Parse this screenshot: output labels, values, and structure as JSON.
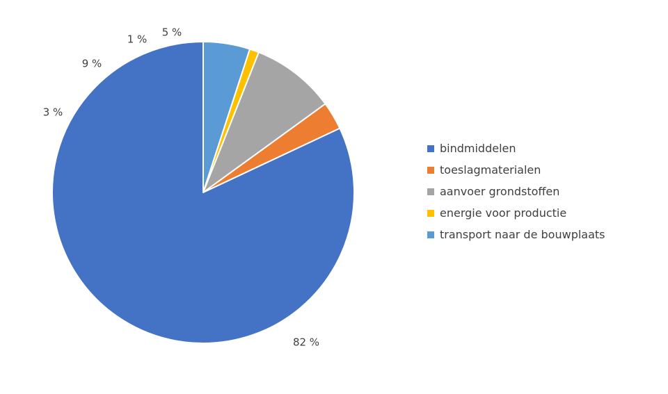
{
  "chart_data": {
    "type": "pie",
    "title": "",
    "start_angle": "12 o'clock",
    "direction": "clockwise",
    "legend_position": "right",
    "slices": [
      {
        "name": "bindmiddelen",
        "value": 82,
        "label": "82 %",
        "color": "#4472C4"
      },
      {
        "name": "toeslagmaterialen",
        "value": 3,
        "label": "3 %",
        "color": "#ED7D31"
      },
      {
        "name": "aanvoer grondstoffen",
        "value": 9,
        "label": "9 %",
        "color": "#A5A5A5"
      },
      {
        "name": "energie voor productie",
        "value": 1,
        "label": "1 %",
        "color": "#FFC000"
      },
      {
        "name": "transport naar de bouwplaats",
        "value": 5,
        "label": "5 %",
        "color": "#5B9BD5"
      }
    ]
  }
}
